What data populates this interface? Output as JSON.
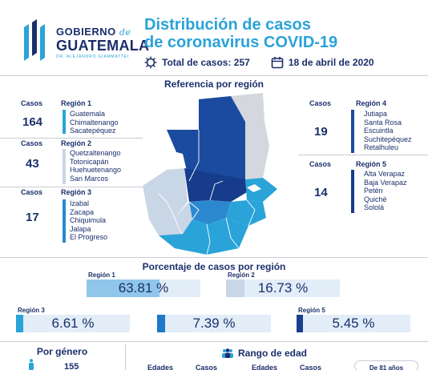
{
  "header": {
    "logo_line1": "GOBIERNO",
    "logo_de": "de",
    "logo_line2": "GUATEMALA",
    "logo_sub": "DR. ALEJANDRO GIAMMATTEI",
    "title_line1": "Distribución de casos",
    "title_line2": "de coronavirus COVID-19",
    "total_label": "Total de casos: 257",
    "date": "18 de abril de 2020",
    "virus_icon": "virus-icon",
    "calendar_icon": "calendar-icon"
  },
  "referencia": {
    "title": "Referencia por región",
    "regions": [
      {
        "casos_label": "Casos",
        "casos": "164",
        "name": "Región 1",
        "color": "#2aa3d8",
        "departments": [
          "Guatemala",
          "Chimaltenango",
          "Sacatepéquez"
        ]
      },
      {
        "casos_label": "Casos",
        "casos": "43",
        "name": "Región 2",
        "color": "#c9d6e6",
        "departments": [
          "Quetzaltenango",
          "Totonicapán",
          "Huehuetenango",
          "San Marcos"
        ]
      },
      {
        "casos_label": "Casos",
        "casos": "17",
        "name": "Región 3",
        "color": "#2b88cf",
        "departments": [
          "Izabal",
          "Zacapa",
          "Chiquimula",
          "Jalapa",
          "El Progreso"
        ]
      },
      {
        "casos_label": "Casos",
        "casos": "19",
        "name": "Región 4",
        "color": "#1b4b9f",
        "departments": [
          "Jutiapa",
          "Santa Rosa",
          "Escuintla",
          "Suchitepéquez",
          "Retalhuleu"
        ]
      },
      {
        "casos_label": "Casos",
        "casos": "14",
        "name": "Región 5",
        "color": "#173c8c",
        "departments": [
          "Alta Verapaz",
          "Baja Verapaz",
          "Petén",
          "Quiché",
          "Sololá"
        ]
      }
    ]
  },
  "porcentaje": {
    "title": "Porcentaje de casos por región",
    "items": [
      {
        "label": "Región 1",
        "value": "63.81",
        "unit": "%",
        "percent": 63.81,
        "color": "#8fc6ea"
      },
      {
        "label": "Región 2",
        "value": "16.73",
        "unit": "%",
        "percent": 16.73,
        "color": "#c9d6e6"
      },
      {
        "label": "Región 3",
        "value": "6.61",
        "unit": "%",
        "percent": 6.61,
        "color": "#2aa3d8"
      },
      {
        "label": "",
        "value": "7.39",
        "unit": "%",
        "percent": 7.39,
        "color": "#1d78c8"
      },
      {
        "label": "Región 5",
        "value": "5.45",
        "unit": "%",
        "percent": 5.45,
        "color": "#1b3f8f"
      }
    ]
  },
  "genero": {
    "title": "Por género",
    "count": "155",
    "icon": "male-person-icon"
  },
  "edad": {
    "title": "Rango de edad",
    "icon": "people-group-icon",
    "col_edades": "Edades",
    "col_casos": "Casos",
    "note": "De 81 años"
  }
}
